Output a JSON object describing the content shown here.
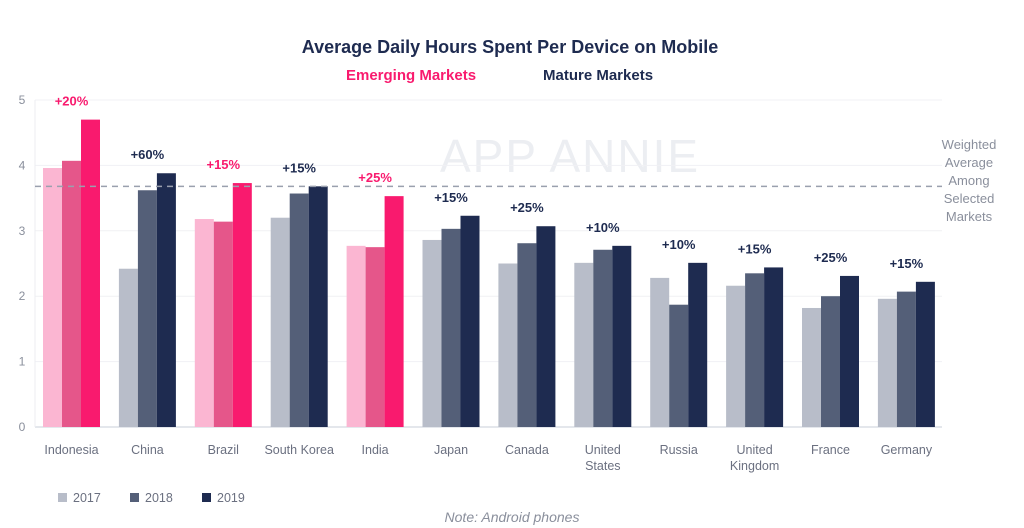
{
  "chart_data": {
    "type": "bar",
    "title": "Average Daily Hours Spent Per Device on Mobile",
    "group_labels": {
      "emerging": "Emerging Markets",
      "mature": "Mature Markets"
    },
    "categories": [
      "Indonesia",
      "China",
      "Brazil",
      "South Korea",
      "India",
      "Japan",
      "Canada",
      "United States",
      "Russia",
      "United Kingdom",
      "France",
      "Germany"
    ],
    "category_group": [
      "emerging",
      "mature",
      "emerging",
      "mature",
      "emerging",
      "mature",
      "mature",
      "mature",
      "mature",
      "mature",
      "mature",
      "mature"
    ],
    "series": [
      {
        "name": "2017",
        "values": [
          3.96,
          2.42,
          3.18,
          3.2,
          2.77,
          2.86,
          2.5,
          2.51,
          2.28,
          2.16,
          1.82,
          1.96
        ]
      },
      {
        "name": "2018",
        "values": [
          4.07,
          3.62,
          3.14,
          3.57,
          2.75,
          3.03,
          2.81,
          2.71,
          1.87,
          2.35,
          2.0,
          2.07
        ]
      },
      {
        "name": "2019",
        "values": [
          4.7,
          3.88,
          3.73,
          3.68,
          3.53,
          3.23,
          3.07,
          2.77,
          2.51,
          2.44,
          2.31,
          2.22
        ]
      }
    ],
    "growth_labels": [
      "+20%",
      "+60%",
      "+15%",
      "+15%",
      "+25%",
      "+15%",
      "+25%",
      "+10%",
      "+10%",
      "+15%",
      "+25%",
      "+15%"
    ],
    "reference_line": {
      "value": 3.68,
      "label_lines": [
        "Weighted",
        "Average",
        "Among",
        "Selected",
        "Markets"
      ]
    },
    "ylim": [
      0,
      5
    ],
    "yticks": [
      0,
      1,
      2,
      3,
      4,
      5
    ],
    "grid": true,
    "legend_position": "bottom-left",
    "colors": {
      "emerging": [
        "#fbb6d2",
        "#e5568a",
        "#f91a6e"
      ],
      "mature": [
        "#b8bdc9",
        "#545f78",
        "#1e2b50"
      ],
      "emerging_text": "#f91a6e",
      "mature_text": "#1e2b50"
    },
    "note": "Note: Android phones",
    "watermark": "APP ANNIE"
  }
}
